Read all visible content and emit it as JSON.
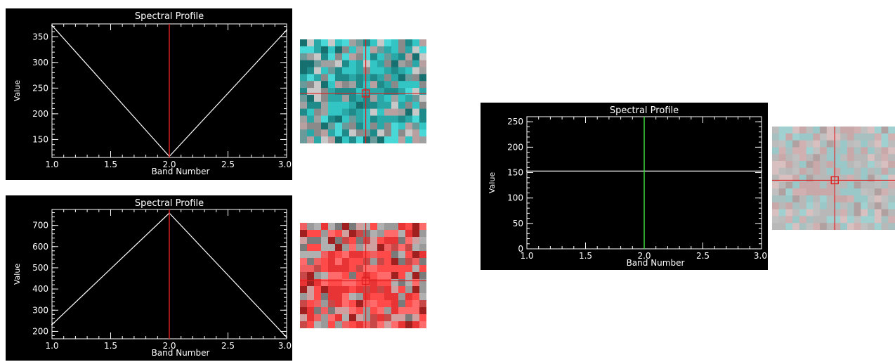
{
  "colors": {
    "plot_background": "#000000",
    "axis": "#ffffff",
    "profile_line": "#ffffff",
    "band_marker_red": "#d82020",
    "band_marker_green": "#3cd83c",
    "crosshair": "#e02020"
  },
  "chart_data": [
    {
      "type": "line",
      "title": "Spectral Profile",
      "xlabel": "Band Number",
      "ylabel": "Value",
      "xlim": [
        1.0,
        3.0
      ],
      "ylim": [
        115,
        375
      ],
      "xticks": [
        "1.0",
        "1.5",
        "2.0",
        "2.5",
        "3.0"
      ],
      "yticks": [
        150,
        200,
        250,
        300,
        350
      ],
      "grid": false,
      "x": [
        1,
        2,
        3
      ],
      "y": [
        372,
        117,
        363
      ],
      "band_marker": 2.0,
      "band_marker_color": "red"
    },
    {
      "type": "line",
      "title": "Spectral Profile",
      "xlabel": "Band Number",
      "ylabel": "Value",
      "xlim": [
        1.0,
        3.0
      ],
      "ylim": [
        165,
        775
      ],
      "xticks": [
        "1.0",
        "1.5",
        "2.0",
        "2.5",
        "3.0"
      ],
      "yticks": [
        200,
        300,
        400,
        500,
        600,
        700
      ],
      "grid": false,
      "x": [
        1,
        2,
        3
      ],
      "y": [
        232,
        758,
        172
      ],
      "band_marker": 2.0,
      "band_marker_color": "red"
    },
    {
      "type": "line",
      "title": "Spectral Profile",
      "xlabel": "Band Number",
      "ylabel": "Value",
      "xlim": [
        1.0,
        3.0
      ],
      "ylim": [
        0,
        260
      ],
      "xticks": [
        "1.0",
        "1.5",
        "2.0",
        "2.5",
        "3.0"
      ],
      "yticks": [
        0,
        50,
        100,
        150,
        200,
        250
      ],
      "grid": false,
      "x": [
        1,
        2,
        3
      ],
      "y": [
        153,
        153,
        153
      ],
      "band_marker": 2.0,
      "band_marker_color": "green"
    }
  ],
  "thumbnails": [
    {
      "name": "cyan-pixel-zoom",
      "palette": [
        "#2aa8a8",
        "#33c4c4",
        "#1e8a8a",
        "#48d8d8",
        "#8a8a8a",
        "#a0a0a0",
        "#6a9a9a",
        "#b8a0a0",
        "#177070",
        "#c8c8c8"
      ]
    },
    {
      "name": "red-pixel-zoom",
      "palette": [
        "#ff4a4a",
        "#e83434",
        "#ff6a6a",
        "#9a9a9a",
        "#b0b0b0",
        "#7a7a7a",
        "#c84848",
        "#d0a0a0",
        "#a02020",
        "#f06060"
      ]
    },
    {
      "name": "mixed-pixel-zoom",
      "palette": [
        "#c8a8a8",
        "#b8b8b8",
        "#9ac8c8",
        "#d0b0b0",
        "#a8c0c0",
        "#c0c0c0",
        "#b0a0a0",
        "#a0d0d0",
        "#d8c0c0",
        "#bcbcbc"
      ]
    }
  ]
}
